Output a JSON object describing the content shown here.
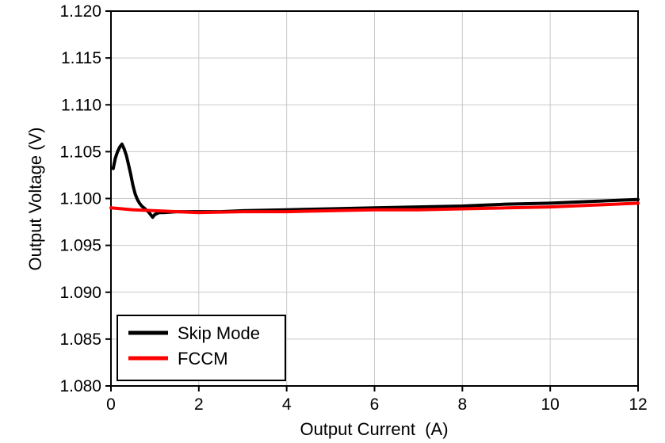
{
  "chart_data": {
    "type": "line",
    "title": "",
    "xlabel": "Output Current  (A)",
    "ylabel": "Output Voltage (V)",
    "xlim": [
      0,
      12
    ],
    "ylim": [
      1.08,
      1.12
    ],
    "xticks": [
      0,
      2,
      4,
      6,
      8,
      10,
      12
    ],
    "xtick_labels": [
      "0",
      "2",
      "4",
      "6",
      "8",
      "10",
      "12"
    ],
    "yticks": [
      1.08,
      1.085,
      1.09,
      1.095,
      1.1,
      1.105,
      1.11,
      1.115,
      1.12
    ],
    "ytick_labels": [
      "1.080",
      "1.085",
      "1.090",
      "1.095",
      "1.100",
      "1.105",
      "1.110",
      "1.115",
      "1.120"
    ],
    "grid": true,
    "grid_color": "#c9c9c9",
    "axis_color": "#000000",
    "legend_position": "bottom-left",
    "series": [
      {
        "name": "Skip Mode",
        "color": "#000000",
        "x": [
          0.05,
          0.1,
          0.15,
          0.2,
          0.25,
          0.3,
          0.35,
          0.4,
          0.45,
          0.5,
          0.55,
          0.6,
          0.65,
          0.7,
          0.75,
          0.8,
          0.85,
          0.9,
          0.95,
          1.0,
          1.1,
          1.2,
          1.5,
          2.0,
          2.5,
          3.0,
          4.0,
          5.0,
          6.0,
          7.0,
          8.0,
          9.0,
          10.0,
          11.0,
          12.0
        ],
        "y": [
          1.1032,
          1.1043,
          1.105,
          1.1055,
          1.1058,
          1.1053,
          1.1046,
          1.1036,
          1.1026,
          1.1014,
          1.1005,
          1.0999,
          1.0995,
          1.0992,
          1.099,
          1.0988,
          1.0986,
          1.0983,
          1.098,
          1.0983,
          1.0985,
          1.0985,
          1.0986,
          1.0986,
          1.0986,
          1.0987,
          1.0988,
          1.0989,
          1.099,
          1.0991,
          1.0992,
          1.0994,
          1.0995,
          1.0997,
          1.0999
        ]
      },
      {
        "name": "FCCM",
        "color": "#ff0000",
        "x": [
          0.0,
          0.5,
          1.0,
          1.5,
          2.0,
          3.0,
          4.0,
          5.0,
          6.0,
          7.0,
          8.0,
          9.0,
          10.0,
          11.0,
          12.0
        ],
        "y": [
          1.099,
          1.0988,
          1.0987,
          1.0986,
          1.0985,
          1.0986,
          1.0986,
          1.0987,
          1.0988,
          1.0988,
          1.0989,
          1.099,
          1.0991,
          1.0993,
          1.0995
        ]
      }
    ]
  }
}
